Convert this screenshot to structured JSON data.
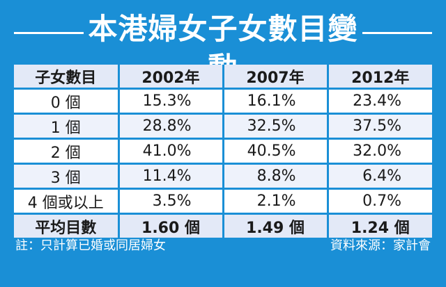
{
  "title": "本港婦女子女數目變動",
  "colors": {
    "background": "#1a8fd6",
    "header_row": "#e3e9f7",
    "text": "#1a1a1a"
  },
  "table": {
    "headers": [
      "子女數目",
      "2002年",
      "2007年",
      "2012年"
    ],
    "rows": [
      {
        "label": "0 個",
        "values": [
          "15.3%",
          "16.1%",
          "23.4%"
        ]
      },
      {
        "label": "1 個",
        "values": [
          "28.8%",
          "32.5%",
          "37.5%"
        ]
      },
      {
        "label": "2 個",
        "values": [
          "41.0%",
          "40.5%",
          "32.0%"
        ]
      },
      {
        "label": "3 個",
        "values": [
          "11.4%",
          "8.8%",
          "6.4%"
        ]
      },
      {
        "label": "4 個或以上",
        "values": [
          "3.5%",
          "2.1%",
          "0.7%"
        ]
      }
    ],
    "footer": {
      "label": "平均目數",
      "values": [
        "1.60 個",
        "1.49 個",
        "1.24 個"
      ]
    }
  },
  "note": "註：只計算已婚或同居婦女",
  "source": "資料來源：家計會"
}
